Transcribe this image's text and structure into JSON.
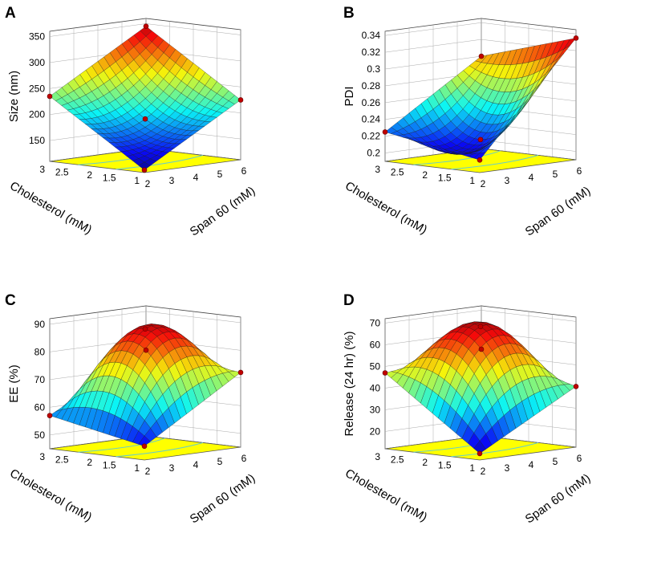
{
  "chart_data": [
    {
      "type": "surface3d",
      "panel": "A",
      "zlabel": "Size (nm)",
      "zticks": [
        "150",
        "200",
        "250",
        "300",
        "350"
      ],
      "zticks_values": [
        150,
        200,
        250,
        300,
        350
      ],
      "zlim": [
        110,
        360
      ],
      "xlabel": "Span 60 (mM)",
      "xticks": [
        "2",
        "3",
        "4",
        "5",
        "6"
      ],
      "xlim": [
        2,
        6
      ],
      "ylabel": "Cholesterol (mM)",
      "yticks": [
        "1",
        "1.5",
        "2",
        "2.5",
        "3"
      ],
      "ylim": [
        1,
        3
      ],
      "corners": {
        "span2_chol1": 115,
        "span6_chol1": 225,
        "span2_chol3": 235,
        "span6_chol3": 345
      },
      "center": 190
    },
    {
      "type": "surface3d",
      "panel": "B",
      "zlabel": "PDI",
      "zticks": [
        "0.2",
        "0.22",
        "0.24",
        "0.26",
        "0.28",
        "0.3",
        "0.32",
        "0.34"
      ],
      "zticks_values": [
        0.2,
        0.22,
        0.24,
        0.26,
        0.28,
        0.3,
        0.32,
        0.34
      ],
      "zlim": [
        0.19,
        0.345
      ],
      "xlabel": "Span 60 (mM)",
      "xticks": [
        "2",
        "3",
        "4",
        "5",
        "6"
      ],
      "xlim": [
        2,
        6
      ],
      "ylabel": "Cholesterol (mM)",
      "yticks": [
        "1",
        "1.5",
        "2",
        "2.5",
        "3"
      ],
      "ylim": [
        1,
        3
      ],
      "corners": {
        "span2_chol1": 0.205,
        "span6_chol1": 0.335,
        "span2_chol3": 0.225,
        "span6_chol3": 0.3
      },
      "center": 0.215
    },
    {
      "type": "surface3d",
      "panel": "C",
      "zlabel": "EE (%)",
      "zticks": [
        "50",
        "60",
        "70",
        "80",
        "90"
      ],
      "zticks_values": [
        50,
        60,
        70,
        80,
        90
      ],
      "zlim": [
        45,
        92
      ],
      "xlabel": "Span 60 (mM)",
      "xticks": [
        "2",
        "3",
        "4",
        "5",
        "6"
      ],
      "xlim": [
        2,
        6
      ],
      "ylabel": "Cholesterol (mM)",
      "yticks": [
        "1",
        "1.5",
        "2",
        "2.5",
        "3"
      ],
      "ylim": [
        1,
        3
      ],
      "corners": {
        "span2_chol1": 50,
        "span6_chol1": 72,
        "span2_chol3": 57,
        "span6_chol3": 76
      },
      "center": 88
    },
    {
      "type": "surface3d",
      "panel": "D",
      "zlabel": "Release (24 hr) (%)",
      "zticks": [
        "20",
        "30",
        "40",
        "50",
        "60",
        "70"
      ],
      "zticks_values": [
        20,
        30,
        40,
        50,
        60,
        70
      ],
      "zlim": [
        12,
        72
      ],
      "xlabel": "Span 60 (mM)",
      "xticks": [
        "2",
        "3",
        "4",
        "5",
        "6"
      ],
      "xlim": [
        2,
        6
      ],
      "ylabel": "Cholesterol (mM)",
      "yticks": [
        "1",
        "1.5",
        "2",
        "2.5",
        "3"
      ],
      "ylim": [
        1,
        3
      ],
      "corners": {
        "span2_chol1": 15,
        "span6_chol1": 40,
        "span2_chol3": 47,
        "span6_chol3": 52
      },
      "center": 68
    }
  ]
}
